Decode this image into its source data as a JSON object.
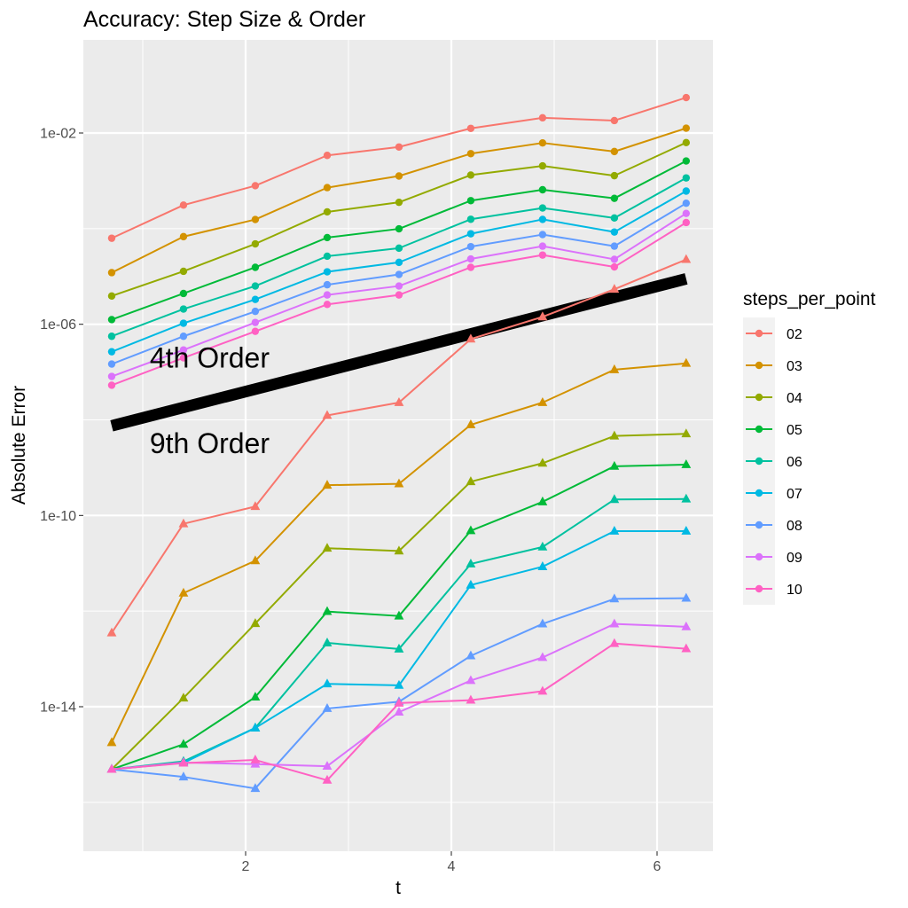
{
  "chart_data": {
    "type": "line",
    "title": "Accuracy: Step Size & Order",
    "xlabel": "t",
    "ylabel": "Absolute Error",
    "x_ticks": [
      2,
      4,
      6
    ],
    "y_scale": "log10",
    "y_ticks": [
      1e-14,
      1e-10,
      1e-06,
      0.01
    ],
    "y_tick_labels": [
      "1e-14",
      "1e-10",
      "1e-06",
      "1e-02"
    ],
    "xlim": [
      0.35,
      6.45
    ],
    "ylim": [
      1e-16,
      1
    ],
    "grid": true,
    "legend": {
      "title": "steps_per_point",
      "position": "right"
    },
    "x": [
      0.698,
      1.396,
      2.094,
      2.793,
      3.491,
      4.189,
      4.887,
      5.585,
      6.283
    ],
    "series": [
      {
        "name": "02",
        "color": "#F8766D",
        "marker": "circle",
        "values": [
          6.3e-05,
          0.00031,
          0.00079,
          0.0034,
          0.0051,
          0.0125,
          0.0208,
          0.0182,
          0.055
        ]
      },
      {
        "name": "03",
        "color": "#D39200",
        "marker": "circle",
        "values": [
          1.2e-05,
          6.8e-05,
          0.000155,
          0.00072,
          0.00126,
          0.0037,
          0.0062,
          0.0041,
          0.0126
        ]
      },
      {
        "name": "04",
        "color": "#93AA00",
        "marker": "circle",
        "values": [
          3.9e-06,
          1.28e-05,
          4.8e-05,
          0.000224,
          0.000355,
          0.00132,
          0.00205,
          0.00128,
          0.0063
        ]
      },
      {
        "name": "05",
        "color": "#00BA38",
        "marker": "circle",
        "values": [
          1.25e-06,
          4.4e-06,
          1.55e-05,
          6.5e-05,
          9.9e-05,
          0.000385,
          0.00065,
          0.00043,
          0.0026
        ]
      },
      {
        "name": "06",
        "color": "#00C19F",
        "marker": "circle",
        "values": [
          5.6e-07,
          2.08e-06,
          6.3e-06,
          2.65e-05,
          3.9e-05,
          0.000157,
          0.00027,
          0.000167,
          0.00115
        ]
      },
      {
        "name": "07",
        "color": "#00B9E3",
        "marker": "circle",
        "values": [
          2.66e-07,
          1.05e-06,
          3.3e-06,
          1.25e-05,
          1.97e-05,
          7.8e-05,
          0.000156,
          8.5e-05,
          0.00061
        ]
      },
      {
        "name": "08",
        "color": "#619CFF",
        "marker": "circle",
        "values": [
          1.47e-07,
          5.6e-07,
          1.86e-06,
          6.7e-06,
          1.1e-05,
          4.2e-05,
          7.5e-05,
          4.3e-05,
          0.00034
        ]
      },
      {
        "name": "09",
        "color": "#DB72FB",
        "marker": "circle",
        "values": [
          8.1e-08,
          2.9e-07,
          1.09e-06,
          4.1e-06,
          6.3e-06,
          2.32e-05,
          4.3e-05,
          2.28e-05,
          0.000208
        ]
      },
      {
        "name": "10",
        "color": "#FF61C3",
        "marker": "circle",
        "values": [
          5.3e-08,
          1.98e-07,
          7.1e-07,
          2.6e-06,
          4.1e-06,
          1.55e-05,
          2.8e-05,
          1.58e-05,
          0.000134
        ]
      },
      {
        "name": "02",
        "color": "#F8766D",
        "marker": "triangle",
        "values": [
          3.5e-13,
          6.7e-11,
          1.54e-10,
          1.24e-08,
          2.3e-08,
          4.9e-07,
          1.43e-06,
          5.4e-06,
          2.26e-05
        ]
      },
      {
        "name": "03",
        "color": "#D39200",
        "marker": "triangle",
        "values": [
          1.78e-15,
          2.38e-12,
          1.13e-11,
          4.3e-10,
          4.6e-10,
          7.9e-09,
          2.3e-08,
          1.12e-07,
          1.52e-07
        ]
      },
      {
        "name": "04",
        "color": "#93AA00",
        "marker": "triangle",
        "values": [
          4.9e-16,
          1.52e-14,
          5.5e-13,
          2.07e-11,
          1.81e-11,
          5.1e-10,
          1.24e-09,
          4.6e-09,
          5.1e-09
        ]
      },
      {
        "name": "05",
        "color": "#00BA38",
        "marker": "triangle",
        "values": [
          4.9e-16,
          1.64e-15,
          1.59e-14,
          9.8e-13,
          7.9e-13,
          4.8e-11,
          1.93e-10,
          1.07e-09,
          1.16e-09
        ]
      },
      {
        "name": "06",
        "color": "#00C19F",
        "marker": "triangle",
        "values": [
          4.9e-16,
          7.2e-16,
          3.6e-15,
          2.16e-13,
          1.61e-13,
          9.7e-12,
          2.19e-11,
          2.16e-10,
          2.21e-10
        ]
      },
      {
        "name": "07",
        "color": "#00B9E3",
        "marker": "triangle",
        "values": [
          4.9e-16,
          6.7e-16,
          3.6e-15,
          3e-14,
          2.8e-14,
          3.5e-12,
          8.5e-12,
          4.7e-11,
          4.7e-11
        ]
      },
      {
        "name": "08",
        "color": "#619CFF",
        "marker": "triangle",
        "values": [
          4.9e-16,
          3.4e-16,
          1.95e-16,
          9.2e-15,
          1.27e-14,
          1.16e-13,
          5.4e-13,
          1.8e-12,
          1.86e-12
        ]
      },
      {
        "name": "09",
        "color": "#DB72FB",
        "marker": "triangle",
        "values": [
          4.9e-16,
          6.8e-16,
          6.3e-16,
          5.7e-16,
          7.7e-15,
          3.53e-14,
          1.07e-13,
          5.4e-13,
          4.7e-13
        ]
      },
      {
        "name": "10",
        "color": "#FF61C3",
        "marker": "triangle",
        "values": [
          4.9e-16,
          6.6e-16,
          7.7e-16,
          2.9e-16,
          1.19e-14,
          1.37e-14,
          2.11e-14,
          2.1e-13,
          1.63e-13
        ]
      }
    ],
    "reference_line": {
      "x": [
        0.698,
        6.283
      ],
      "values": [
        7.5e-09,
        8.9e-06
      ],
      "color": "#000000"
    },
    "annotations": [
      {
        "text": "4th Order",
        "x": 1.65,
        "y": 2e-07
      },
      {
        "text": "9th Order",
        "x": 1.65,
        "y": 3.2e-09
      }
    ]
  }
}
